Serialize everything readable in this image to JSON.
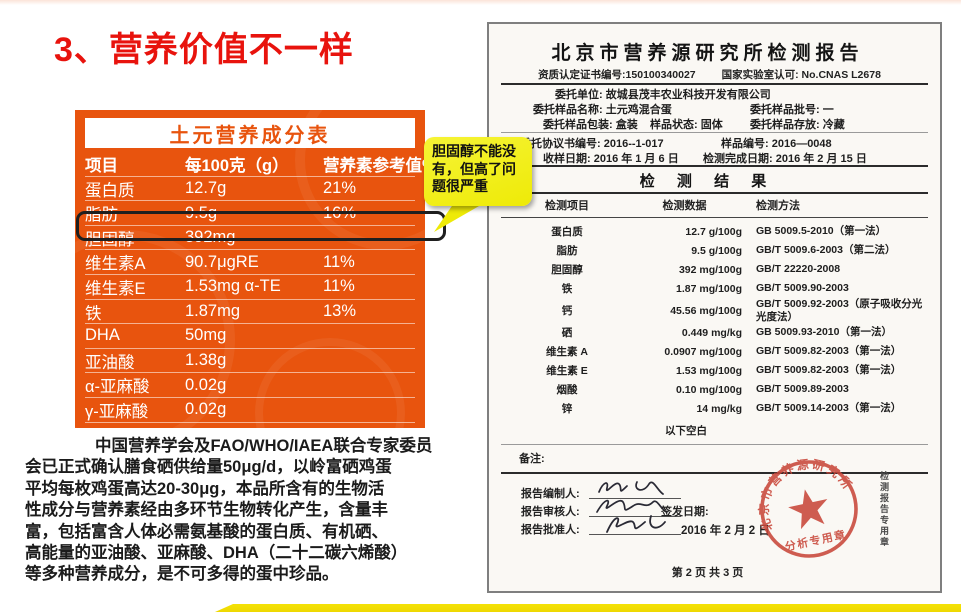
{
  "slide": {
    "title": "3、营养价值不一样",
    "paragraph_lines": [
      "中国营养学会及FAO/WHO/IAEA联合专家委员",
      "会已正式确认膳食硒供给量50μg/d，以岭富硒鸡蛋",
      "平均每枚鸡蛋高达20-30μg，本品所含有的生物活",
      "性成分与营养素经由多环节生物转化产生，含量丰",
      "富，包括富含人体必需氨基酸的蛋白质、有机硒、",
      "高能量的亚油酸、亚麻酸、DHA（二十二碳六烯酸）",
      "等多种营养成分，是不可多得的蛋中珍品。"
    ],
    "accent_red": "#e8130d",
    "accent_orange": "#e8540e",
    "accent_yellow": "#f2ef15"
  },
  "nutrition_table": {
    "title": "土元营养成分表",
    "columns": [
      "项目",
      "每100克（g）",
      "营养素参考值%"
    ],
    "rows": [
      {
        "item": "蛋白质",
        "amount": "12.7g",
        "ref": "21%",
        "highlighted": false
      },
      {
        "item": "脂肪",
        "amount": "9.5g",
        "ref": "16%",
        "highlighted": false
      },
      {
        "item": "胆固醇",
        "amount": "392mg",
        "ref": "",
        "highlighted": true
      },
      {
        "item": "维生素A",
        "amount": "90.7μgRE",
        "ref": "11%",
        "highlighted": false
      },
      {
        "item": "维生素E",
        "amount": "1.53mg α-TE",
        "ref": "11%",
        "highlighted": false
      },
      {
        "item": "铁",
        "amount": "1.87mg",
        "ref": "13%",
        "highlighted": false
      },
      {
        "item": "DHA",
        "amount": "50mg",
        "ref": "",
        "highlighted": false
      },
      {
        "item": "亚油酸",
        "amount": "1.38g",
        "ref": "",
        "highlighted": false
      },
      {
        "item": "α-亚麻酸",
        "amount": "0.02g",
        "ref": "",
        "highlighted": false
      },
      {
        "item": "γ-亚麻酸",
        "amount": "0.02g",
        "ref": "",
        "highlighted": false
      }
    ]
  },
  "callout": {
    "text": "胆固醇不能没有，但高了问题很严重"
  },
  "report": {
    "title": "北京市营养源研究所检测报告",
    "cert_left": "资质认定证书编号:150100340027",
    "cert_right": "国家实验室认可: No.CNAS L2678",
    "info": {
      "entrust_unit": "委托单位: 故城县茂丰农业科技开发有限公司",
      "sample_name": "委托样品名称: 土元鸡混合蛋",
      "sample_batch": "委托样品批号: 一",
      "sample_package": "委托样品包装: 盒装",
      "sample_state": "样品状态: 固体",
      "sample_storage": "委托样品存放: 冷藏",
      "agreement_no": "委托协议书编号: 2016--1-017",
      "sample_no": "样品编号: 2016—0048",
      "receive_date": "收样日期: 2016 年 1 月 6 日",
      "complete_date": "检测完成日期: 2016 年 2 月 15 日"
    },
    "results_title": "检 测 结 果",
    "results_columns": [
      "检测项目",
      "检测数据",
      "检测方法"
    ],
    "results_rows": [
      {
        "item": "蛋白质",
        "data": "12.7 g/100g",
        "method": "GB 5009.5-2010（第一法）"
      },
      {
        "item": "脂肪",
        "data": "9.5 g/100g",
        "method": "GB/T 5009.6-2003（第二法）"
      },
      {
        "item": "胆固醇",
        "data": "392 mg/100g",
        "method": "GB/T 22220-2008"
      },
      {
        "item": "铁",
        "data": "1.87 mg/100g",
        "method": "GB/T 5009.90-2003"
      },
      {
        "item": "钙",
        "data": "45.56 mg/100g",
        "method": "GB/T 5009.92-2003（原子吸收分光光度法）"
      },
      {
        "item": "硒",
        "data": "0.449 mg/kg",
        "method": "GB 5009.93-2010（第一法）"
      },
      {
        "item": "维生素 A",
        "data": "0.0907 mg/100g",
        "method": "GB/T 5009.82-2003（第一法）"
      },
      {
        "item": "维生素 E",
        "data": "1.53 mg/100g",
        "method": "GB/T 5009.82-2003（第一法）"
      },
      {
        "item": "烟酸",
        "data": "0.10 mg/100g",
        "method": "GB/T 5009.89-2003"
      },
      {
        "item": "锌",
        "data": "14 mg/kg",
        "method": "GB/T 5009.14-2003（第一法）"
      }
    ],
    "blank_below": "以下空白",
    "remarks_label": "备注:",
    "signatures": {
      "preparer_label": "报告编制人:",
      "reviewer_label": "报告审核人:",
      "approver_label": "报告批准人:",
      "issue_date_label": "签发日期:",
      "issue_date": "2016 年 2 月 2 日"
    },
    "seal": {
      "ring_text": "北京市营养源研究所",
      "bottom_text": "分析专用章",
      "color": "#c9473a"
    },
    "side_stamp_text": "检测报告专用章",
    "page_footer": "第 2 页 共 3 页"
  }
}
